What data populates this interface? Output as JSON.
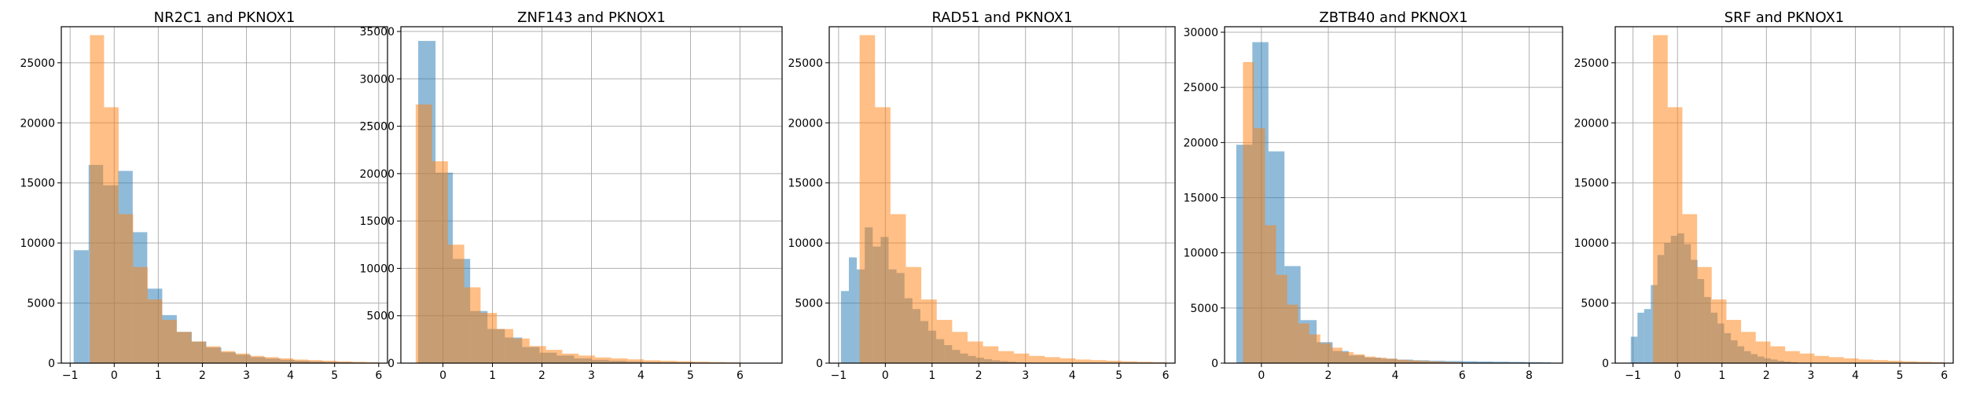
{
  "figure": {
    "series_colors": [
      "#1f77b4",
      "#ff7f0e"
    ],
    "bar_alpha": 0.5,
    "grid": true
  },
  "chart_data": [
    {
      "type": "bar",
      "title": "NR2C1 and PKNOX1",
      "xlim": [
        -1.2,
        6.2
      ],
      "ylim": [
        0,
        28000
      ],
      "xticks": [
        -1,
        0,
        1,
        2,
        3,
        4,
        5,
        6
      ],
      "yticks": [
        0,
        5000,
        10000,
        15000,
        20000,
        25000
      ],
      "series": [
        {
          "edges": [
            -0.92,
            -0.58,
            -0.25,
            0.09,
            0.42,
            0.75,
            1.09,
            1.42,
            1.76,
            2.09,
            2.43,
            2.76,
            3.1,
            3.43,
            3.77,
            4.1,
            4.44,
            4.77,
            5.11,
            5.44,
            5.78
          ],
          "counts": [
            9400,
            16500,
            14800,
            16000,
            10900,
            6200,
            4000,
            2600,
            1800,
            1300,
            900,
            700,
            500,
            380,
            280,
            200,
            140,
            100,
            70,
            40
          ]
        },
        {
          "edges": [
            -0.55,
            -0.23,
            0.1,
            0.43,
            0.76,
            1.09,
            1.42,
            1.75,
            2.08,
            2.41,
            2.74,
            3.07,
            3.4,
            3.73,
            4.06,
            4.39,
            4.72,
            5.05,
            5.38,
            5.71,
            6.0
          ],
          "counts": [
            27300,
            21300,
            12400,
            8000,
            5300,
            3600,
            2600,
            1800,
            1400,
            1000,
            800,
            600,
            500,
            400,
            300,
            250,
            200,
            150,
            110,
            80
          ]
        }
      ]
    },
    {
      "type": "bar",
      "title": "ZNF143 and PKNOX1",
      "xlim": [
        -0.85,
        6.85
      ],
      "ylim": [
        0,
        35500
      ],
      "xticks": [
        0,
        1,
        2,
        3,
        4,
        5,
        6
      ],
      "yticks": [
        0,
        5000,
        10000,
        15000,
        20000,
        25000,
        30000,
        35000
      ],
      "series": [
        {
          "edges": [
            -0.5,
            -0.15,
            0.2,
            0.55,
            0.9,
            1.25,
            1.6,
            1.95,
            2.3,
            2.65,
            3.0,
            3.35,
            3.7,
            4.05,
            4.4,
            4.75,
            5.1,
            5.45,
            5.8,
            6.15,
            6.5
          ],
          "counts": [
            34000,
            20100,
            11000,
            5500,
            3600,
            2700,
            1700,
            1100,
            800,
            500,
            350,
            250,
            180,
            130,
            90,
            70,
            50,
            40,
            30,
            20
          ]
        },
        {
          "edges": [
            -0.55,
            -0.22,
            0.1,
            0.43,
            0.76,
            1.09,
            1.42,
            1.75,
            2.08,
            2.41,
            2.74,
            3.07,
            3.4,
            3.73,
            4.06,
            4.39,
            4.72,
            5.05,
            5.38,
            5.71,
            6.0
          ],
          "counts": [
            27300,
            21300,
            12500,
            8000,
            5300,
            3600,
            2600,
            1800,
            1400,
            1000,
            800,
            600,
            500,
            400,
            300,
            250,
            200,
            150,
            110,
            80
          ]
        }
      ]
    },
    {
      "type": "bar",
      "title": "RAD51 and PKNOX1",
      "xlim": [
        -1.2,
        6.2
      ],
      "ylim": [
        0,
        28000
      ],
      "xticks": [
        -1,
        0,
        1,
        2,
        3,
        4,
        5,
        6
      ],
      "yticks": [
        0,
        5000,
        10000,
        15000,
        20000,
        25000
      ],
      "series": [
        {
          "edges": [
            -0.95,
            -0.78,
            -0.61,
            -0.44,
            -0.27,
            -0.1,
            0.07,
            0.24,
            0.41,
            0.58,
            0.75,
            0.92,
            1.09,
            1.26,
            1.43,
            1.6,
            1.77,
            1.94,
            2.11,
            2.28,
            2.45,
            2.62,
            2.79,
            2.96,
            3.13,
            3.3
          ],
          "counts": [
            6000,
            8800,
            7800,
            11300,
            9700,
            10500,
            7800,
            7500,
            5400,
            4500,
            3500,
            2700,
            2000,
            1500,
            1100,
            800,
            600,
            450,
            330,
            240,
            170,
            120,
            80,
            50,
            30
          ]
        },
        {
          "edges": [
            -0.55,
            -0.22,
            0.11,
            0.44,
            0.77,
            1.1,
            1.43,
            1.76,
            2.09,
            2.42,
            2.75,
            3.08,
            3.41,
            3.74,
            4.07,
            4.4,
            4.73,
            5.06,
            5.39,
            5.72,
            6.0
          ],
          "counts": [
            27300,
            21300,
            12400,
            8000,
            5300,
            3600,
            2600,
            1800,
            1400,
            1000,
            800,
            600,
            500,
            400,
            300,
            250,
            200,
            150,
            110,
            80
          ]
        }
      ]
    },
    {
      "type": "bar",
      "title": "ZBTB40 and PKNOX1",
      "xlim": [
        -1.1,
        9.0
      ],
      "ylim": [
        0,
        30500
      ],
      "xticks": [
        0,
        2,
        4,
        6,
        8
      ],
      "yticks": [
        0,
        5000,
        10000,
        15000,
        20000,
        25000,
        30000
      ],
      "series": [
        {
          "edges": [
            -0.75,
            -0.27,
            0.21,
            0.69,
            1.17,
            1.65,
            2.13,
            2.61,
            3.09,
            3.57,
            4.05,
            4.53,
            5.01,
            5.49,
            5.97,
            6.45,
            6.93,
            7.41,
            7.89,
            8.37,
            8.65
          ],
          "counts": [
            19800,
            29100,
            19200,
            8800,
            3900,
            1900,
            1100,
            700,
            500,
            400,
            320,
            260,
            220,
            190,
            170,
            150,
            130,
            110,
            90,
            70
          ]
        },
        {
          "edges": [
            -0.55,
            -0.22,
            0.11,
            0.44,
            0.77,
            1.1,
            1.43,
            1.76,
            2.09,
            2.42,
            2.75,
            3.08,
            3.41,
            3.74,
            4.07,
            4.4,
            4.73,
            5.06,
            5.39,
            5.72,
            6.0
          ],
          "counts": [
            27300,
            21300,
            12500,
            8000,
            5300,
            3600,
            2600,
            1800,
            1400,
            1000,
            800,
            600,
            500,
            400,
            300,
            250,
            200,
            150,
            110,
            80
          ]
        }
      ]
    },
    {
      "type": "bar",
      "title": "SRF and PKNOX1",
      "xlim": [
        -1.4,
        6.2
      ],
      "ylim": [
        0,
        28000
      ],
      "xticks": [
        -1,
        0,
        1,
        2,
        3,
        4,
        5,
        6
      ],
      "yticks": [
        0,
        5000,
        10000,
        15000,
        20000,
        25000
      ],
      "series": [
        {
          "edges": [
            -1.05,
            -0.9,
            -0.75,
            -0.6,
            -0.45,
            -0.3,
            -0.15,
            0.0,
            0.15,
            0.3,
            0.45,
            0.6,
            0.75,
            0.9,
            1.05,
            1.2,
            1.35,
            1.5,
            1.65,
            1.8,
            1.95,
            2.1,
            2.25,
            2.4,
            2.55,
            2.7
          ],
          "counts": [
            2200,
            4200,
            4500,
            6500,
            9000,
            10000,
            10600,
            10800,
            9900,
            8600,
            7000,
            5500,
            4200,
            3300,
            2500,
            1900,
            1400,
            1000,
            750,
            550,
            400,
            300,
            200,
            130,
            80
          ]
        },
        {
          "edges": [
            -0.55,
            -0.22,
            0.11,
            0.44,
            0.77,
            1.1,
            1.43,
            1.76,
            2.09,
            2.42,
            2.75,
            3.08,
            3.41,
            3.74,
            4.07,
            4.4,
            4.73,
            5.06,
            5.39,
            5.72,
            6.0
          ],
          "counts": [
            27300,
            21300,
            12400,
            8000,
            5300,
            3600,
            2600,
            1800,
            1400,
            1000,
            800,
            600,
            500,
            400,
            300,
            250,
            200,
            150,
            110,
            80
          ]
        }
      ]
    }
  ]
}
